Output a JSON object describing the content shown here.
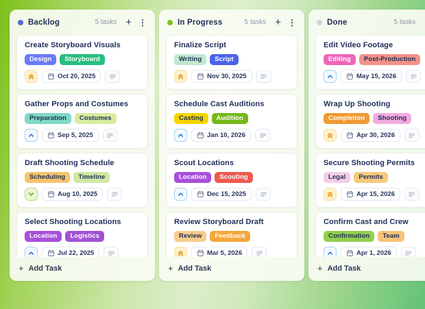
{
  "icons": {
    "plus": "+",
    "kebab": "⋮"
  },
  "text_colors": {
    "dark_tag_text": "#1f2d52",
    "light_tag_text": "#ffffff"
  },
  "board": {
    "columns": [
      {
        "name": "Backlog",
        "dot_color": "#4a69d9",
        "count_label": "5 tasks",
        "add_task_label": "Add Task",
        "cards": [
          {
            "title": "Create Storyboard Visuals",
            "priority": "high",
            "due": "Oct 20, 2025",
            "tags": [
              {
                "label": "Design",
                "bg": "#6b7bf5",
                "fg": "#ffffff"
              },
              {
                "label": "Storyboard",
                "bg": "#29bd80",
                "fg": "#ffffff"
              }
            ]
          },
          {
            "title": "Gather Props and Costumes",
            "priority": "medium",
            "due": "Sep 5, 2025",
            "tags": [
              {
                "label": "Preparation",
                "bg": "#7fd9c3",
                "fg": "#1f2d52"
              },
              {
                "label": "Costumes",
                "bg": "#d9ec9f",
                "fg": "#1f2d52"
              }
            ]
          },
          {
            "title": "Draft Shooting Schedule",
            "priority": "low",
            "due": "Aug 10, 2025",
            "tags": [
              {
                "label": "Scheduling",
                "bg": "#f6c36e",
                "fg": "#1f2d52"
              },
              {
                "label": "Timeline",
                "bg": "#cfe9a4",
                "fg": "#1f2d52"
              }
            ]
          },
          {
            "title": "Select Shooting Locations",
            "priority": "medium",
            "due": "Jul 22, 2025",
            "tags": [
              {
                "label": "Location",
                "bg": "#a74fd9",
                "fg": "#ffffff"
              },
              {
                "label": "Logistics",
                "bg": "#a052d4",
                "fg": "#ffffff"
              }
            ]
          }
        ]
      },
      {
        "name": "In Progress",
        "dot_color": "#7cc41e",
        "count_label": "5 tasks",
        "add_task_label": "Add Task",
        "cards": [
          {
            "title": "Finalize Script",
            "priority": "high",
            "due": "Nov 30, 2025",
            "tags": [
              {
                "label": "Writing",
                "bg": "#c0e8d1",
                "fg": "#1f2d52"
              },
              {
                "label": "Script",
                "bg": "#4b63e9",
                "fg": "#ffffff"
              }
            ]
          },
          {
            "title": "Schedule Cast Auditions",
            "priority": "medium",
            "due": "Jan 10, 2026",
            "tags": [
              {
                "label": "Casting",
                "bg": "#f4d502",
                "fg": "#1f2d52"
              },
              {
                "label": "Audition",
                "bg": "#74b81a",
                "fg": "#ffffff"
              }
            ]
          },
          {
            "title": "Scout Locations",
            "priority": "medium",
            "due": "Dec 15, 2025",
            "tags": [
              {
                "label": "Location",
                "bg": "#a74fd9",
                "fg": "#ffffff"
              },
              {
                "label": "Scouting",
                "bg": "#ec5a51",
                "fg": "#ffffff"
              }
            ]
          },
          {
            "title": "Review Storyboard Draft",
            "priority": "high",
            "due": "Mar 5, 2026",
            "tags": [
              {
                "label": "Review",
                "bg": "#f8cc8d",
                "fg": "#1f2d52"
              },
              {
                "label": "Feedback",
                "bg": "#f3a73d",
                "fg": "#ffffff"
              }
            ]
          }
        ]
      },
      {
        "name": "Done",
        "dot_color": "#ccd6dd",
        "count_label": "5 tasks",
        "add_task_label": "Add Task",
        "cards": [
          {
            "title": "Edit Video Footage",
            "priority": "medium",
            "due": "May 15, 2026",
            "tags": [
              {
                "label": "Editing",
                "bg": "#ee66b8",
                "fg": "#ffffff"
              },
              {
                "label": "Post-Production",
                "bg": "#f29289",
                "fg": "#1f2d52"
              }
            ]
          },
          {
            "title": "Wrap Up Shooting",
            "priority": "high",
            "due": "Apr 30, 2026",
            "tags": [
              {
                "label": "Completion",
                "bg": "#f09a33",
                "fg": "#ffffff"
              },
              {
                "label": "Shooting",
                "bg": "#f3abdf",
                "fg": "#1f2d52"
              }
            ]
          },
          {
            "title": "Secure Shooting Permits",
            "priority": "high",
            "due": "Apr 15, 2026",
            "tags": [
              {
                "label": "Legal",
                "bg": "#f6cde9",
                "fg": "#1f2d52"
              },
              {
                "label": "Permits",
                "bg": "#f6ca7e",
                "fg": "#1f2d52"
              }
            ]
          },
          {
            "title": "Confirm Cast and Crew",
            "priority": "medium",
            "due": "Apr 1, 2026",
            "tags": [
              {
                "label": "Confirmation",
                "bg": "#93cf4f",
                "fg": "#1f2d52"
              },
              {
                "label": "Team",
                "bg": "#f6c378",
                "fg": "#1f2d52"
              }
            ]
          }
        ]
      }
    ]
  }
}
